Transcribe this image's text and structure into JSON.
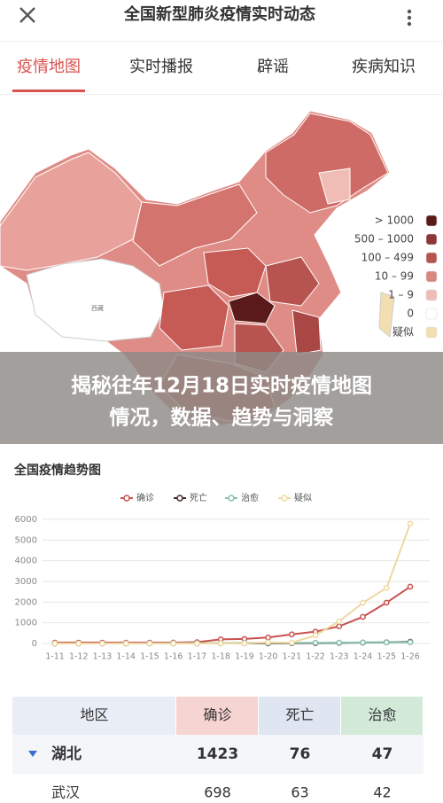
{
  "header": {
    "title": "全国新型肺炎疫情实时动态"
  },
  "tabs": [
    "疫情地图",
    "实时播报",
    "辟谣",
    "疾病知识"
  ],
  "map": {
    "place_label": "西藏",
    "legend": [
      {
        "label": "> 1000",
        "color": "#5b1a1a"
      },
      {
        "label": "500 – 1000",
        "color": "#8f3535"
      },
      {
        "label": "100 – 499",
        "color": "#b85450"
      },
      {
        "label": "10 – 99",
        "color": "#d98580"
      },
      {
        "label": "1 – 9",
        "color": "#efbdb6"
      },
      {
        "label": "0",
        "color": "#ffffff"
      },
      {
        "label": "疑似",
        "color": "#f3deb0"
      }
    ]
  },
  "overlay": {
    "lines": [
      "揭秘往年12月18日实时疫情地图",
      "情况，数据、趋势与洞察"
    ]
  },
  "chart_data": {
    "type": "line",
    "title": "全国疫情趋势图",
    "categories": [
      "1-11",
      "1-12",
      "1-13",
      "1-14",
      "1-15",
      "1-16",
      "1-17",
      "1-18",
      "1-19",
      "1-20",
      "1-21",
      "1-22",
      "1-23",
      "1-24",
      "1-25",
      "1-26"
    ],
    "series": [
      {
        "name": "确诊",
        "color": "#c9514e",
        "values": [
          41,
          41,
          41,
          41,
          41,
          45,
          62,
          198,
          218,
          291,
          440,
          571,
          830,
          1287,
          1975,
          2744
        ]
      },
      {
        "name": "死亡",
        "color": "#4a2626",
        "values": [
          1,
          1,
          1,
          1,
          2,
          2,
          2,
          3,
          4,
          6,
          9,
          17,
          25,
          41,
          56,
          80
        ]
      },
      {
        "name": "治愈",
        "color": "#86c0ac",
        "values": [
          2,
          2,
          2,
          4,
          5,
          12,
          15,
          17,
          25,
          25,
          25,
          34,
          38,
          49,
          51,
          60
        ]
      },
      {
        "name": "疑似",
        "color": "#efd9a2",
        "values": [
          0,
          0,
          0,
          0,
          0,
          0,
          0,
          0,
          0,
          54,
          37,
          393,
          1072,
          1965,
          2684,
          5794
        ]
      }
    ],
    "ylim": [
      0,
      6000
    ],
    "yticks": [
      0,
      1000,
      2000,
      3000,
      4000,
      5000,
      6000
    ],
    "grid": true
  },
  "table": {
    "header": [
      "地区",
      "确诊",
      "死亡",
      "治愈"
    ],
    "rows": [
      [
        "湖北",
        1423,
        76,
        47
      ],
      [
        "武汉",
        698,
        63,
        42
      ]
    ]
  }
}
